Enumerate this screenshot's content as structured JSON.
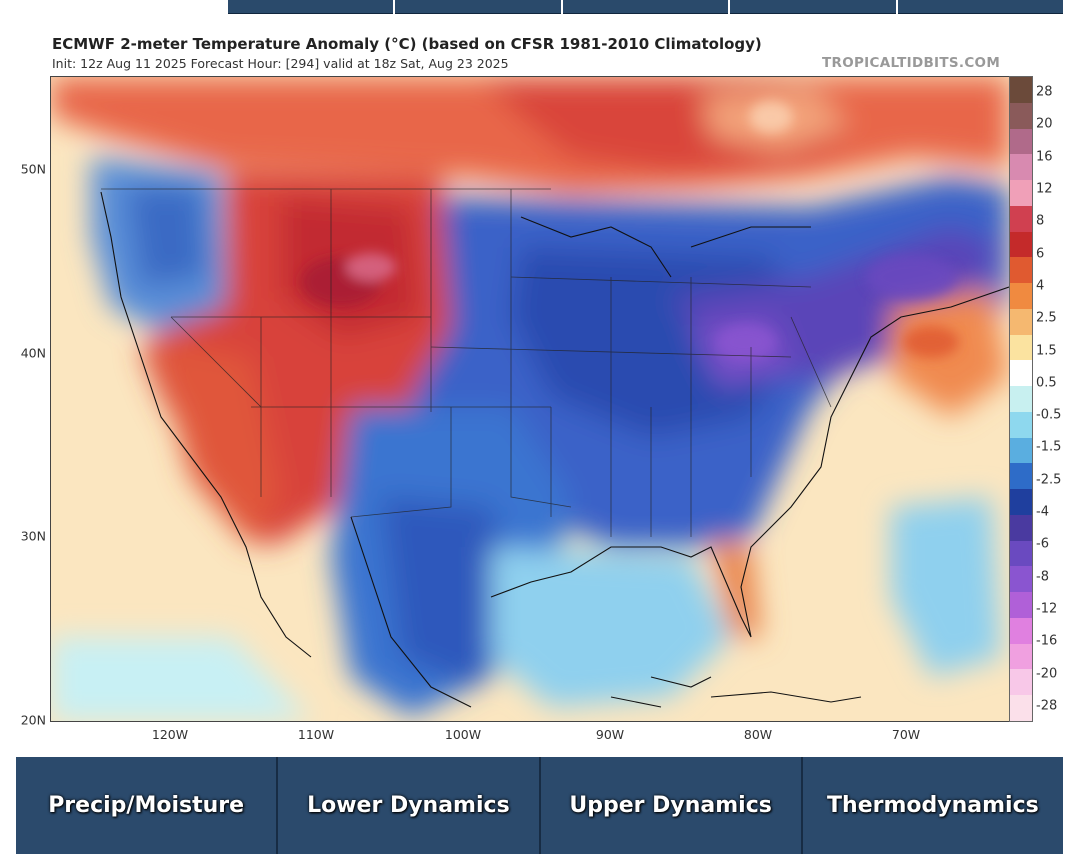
{
  "map": {
    "title": "ECMWF 2-meter Temperature Anomaly (°C) (based on CFSR 1981-2010 Climatology)",
    "subtitle": "Init: 12z Aug 11 2025   Forecast Hour: [294]   valid at 18z Sat, Aug 23 2025",
    "watermark": "TROPICALTIDBITS.COM",
    "latitude_labels": [
      "50N",
      "40N",
      "30N",
      "20N"
    ],
    "longitude_labels": [
      "120W",
      "110W",
      "100W",
      "90W",
      "80W",
      "70W"
    ]
  },
  "colorbar": {
    "labels": [
      "28",
      "20",
      "16",
      "12",
      "8",
      "6",
      "4",
      "2.5",
      "1.5",
      "0.5",
      "-0.5",
      "-1.5",
      "-2.5",
      "-4",
      "-6",
      "-8",
      "-12",
      "-16",
      "-20",
      "-28"
    ],
    "colors": [
      "#6b4a3a",
      "#8a5a5a",
      "#b06a8a",
      "#d88ab0",
      "#f0a0b8",
      "#d04050",
      "#c42a2a",
      "#e05a30",
      "#f08a40",
      "#f5b870",
      "#fbe3a0",
      "#ffffff",
      "#c8f0f0",
      "#8ed8ee",
      "#5aaee0",
      "#2e6cc8",
      "#1f3f9e",
      "#4a3aa0",
      "#6a4ac0",
      "#8a55d0",
      "#b060d8",
      "#e080e0",
      "#f0a0e0",
      "#f8c8e8",
      "#fbe0ea"
    ]
  },
  "nav": {
    "buttons": [
      "Precip/Moisture",
      "Lower Dynamics",
      "Upper Dynamics",
      "Thermodynamics"
    ]
  }
}
